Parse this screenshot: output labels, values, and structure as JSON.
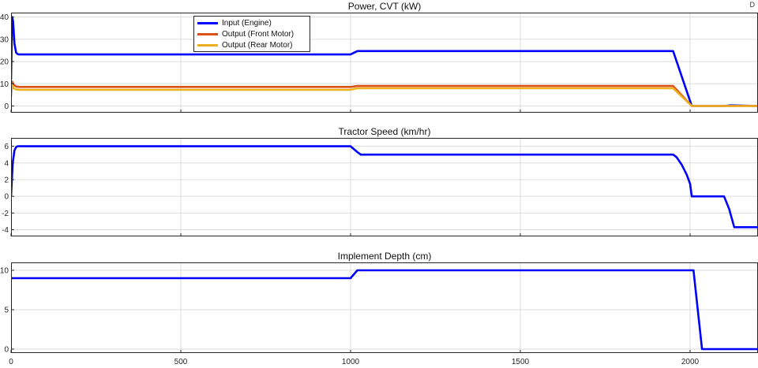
{
  "corner_mark": "D",
  "chart_data": [
    {
      "type": "line",
      "title": "Power, CVT (kW)",
      "xlim": [
        0,
        2200
      ],
      "ylim": [
        -3,
        42
      ],
      "xticks": [
        0,
        500,
        1000,
        1500,
        2000
      ],
      "yticks": [
        0,
        10,
        20,
        30,
        40
      ],
      "grid": true,
      "legend_position": "top-left-center",
      "series": [
        {
          "name": "Input (Engine)",
          "color": "#0000ff",
          "x": [
            0,
            3,
            6,
            10,
            15,
            20,
            25,
            30,
            1000,
            1020,
            1950,
            2005,
            2100,
            2120,
            2200
          ],
          "y": [
            12,
            40,
            38,
            28,
            24,
            23.3,
            23.2,
            23.2,
            23.2,
            24.7,
            24.7,
            0,
            0,
            0.3,
            0
          ]
        },
        {
          "name": "Output (Front Motor)",
          "color": "#d95319",
          "x": [
            0,
            3,
            8,
            15,
            25,
            1000,
            1020,
            1950,
            2005,
            2200
          ],
          "y": [
            5,
            11,
            9.5,
            8.8,
            8.6,
            8.6,
            9,
            9,
            0,
            0
          ]
        },
        {
          "name": "Output (Rear Motor)",
          "color": "#edb120",
          "x": [
            0,
            3,
            8,
            15,
            25,
            1000,
            1020,
            1950,
            2005,
            2200
          ],
          "y": [
            4,
            9.5,
            8,
            7.5,
            7.3,
            7.3,
            8,
            8,
            0,
            0
          ]
        }
      ]
    },
    {
      "type": "line",
      "title": "Tractor Speed (km/hr)",
      "xlim": [
        0,
        2200
      ],
      "ylim": [
        -4.8,
        7
      ],
      "xticks": [
        0,
        500,
        1000,
        1500,
        2000
      ],
      "yticks": [
        -4,
        -2,
        0,
        2,
        4,
        6
      ],
      "grid": true,
      "series": [
        {
          "name": "",
          "color": "#0000ff",
          "x": [
            0,
            5,
            10,
            15,
            20,
            25,
            30,
            1000,
            1020,
            1030,
            1950,
            1960,
            1975,
            1990,
            2000,
            2005,
            2100,
            2115,
            2130,
            2200
          ],
          "y": [
            0,
            4,
            5.5,
            5.9,
            6,
            6,
            6,
            6,
            5.3,
            5,
            5,
            4.7,
            3.8,
            2.6,
            1.5,
            0,
            0,
            -1.5,
            -3.7,
            -3.7
          ]
        }
      ]
    },
    {
      "type": "line",
      "title": "Implement Depth (cm)",
      "xlim": [
        0,
        2200
      ],
      "ylim": [
        -0.5,
        11
      ],
      "xticks": [
        0,
        500,
        1000,
        1500,
        2000
      ],
      "yticks": [
        0,
        5,
        10
      ],
      "grid": true,
      "series": [
        {
          "name": "",
          "color": "#0000ff",
          "x": [
            0,
            1000,
            1020,
            2010,
            2035,
            2200
          ],
          "y": [
            9,
            9,
            10,
            10,
            0,
            0
          ]
        }
      ]
    }
  ]
}
